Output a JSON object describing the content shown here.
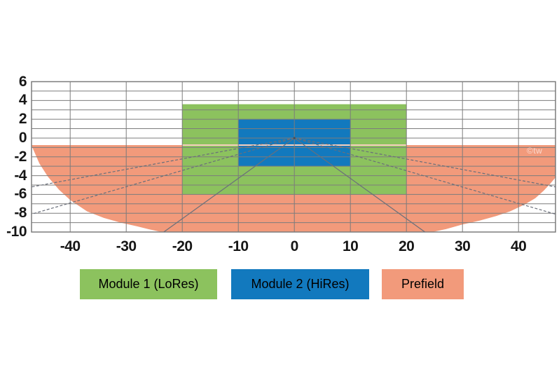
{
  "watermark": {
    "text": "©tw"
  },
  "colors": {
    "module1": "#8CC25E",
    "module2": "#1279BE",
    "prefield": "#F29A7B",
    "prefield_top_edge": "#F8CFBE",
    "grid": "#7C7C7C",
    "border": "#7C7C7C",
    "ray": "#6A6F7A",
    "axis_text": "#161616",
    "background": "#FFFFFF",
    "legend_text": "#000000"
  },
  "chart_data": {
    "type": "area",
    "title": "",
    "xlabel": "",
    "ylabel": "",
    "grid": "on",
    "legend_position": "bottom",
    "x_axis": {
      "min": -46.9,
      "max": 46.6,
      "grid_step": 10,
      "ticks": [
        {
          "value": -40,
          "label": "-40"
        },
        {
          "value": -30,
          "label": "-30"
        },
        {
          "value": -20,
          "label": "-20"
        },
        {
          "value": -10,
          "label": "-10"
        },
        {
          "value": 0,
          "label": "0"
        },
        {
          "value": 10,
          "label": "10"
        },
        {
          "value": 20,
          "label": "20"
        },
        {
          "value": 30,
          "label": "30"
        },
        {
          "value": 40,
          "label": "40"
        }
      ]
    },
    "y_axis": {
      "min": -10,
      "max": 6,
      "grid_step": 1,
      "ticks": [
        {
          "value": 6,
          "label": "6"
        },
        {
          "value": 4,
          "label": "4"
        },
        {
          "value": 2,
          "label": "2"
        },
        {
          "value": 0,
          "label": "0"
        },
        {
          "value": -2,
          "label": "-2"
        },
        {
          "value": -4,
          "label": "-4"
        },
        {
          "value": -6,
          "label": "-6"
        },
        {
          "value": -8,
          "label": "-8"
        },
        {
          "value": -10,
          "label": "-10"
        }
      ]
    },
    "modules": [
      {
        "name": "Module 1 (LoRes)",
        "color_key": "module1",
        "x": [
          -20,
          20
        ],
        "y": [
          -6,
          3.6
        ]
      },
      {
        "name": "Module 2 (HiRes)",
        "color_key": "module2",
        "x": [
          -10,
          10
        ],
        "y": [
          -3,
          2
        ]
      }
    ],
    "prefield": {
      "name": "Prefield",
      "color_key": "prefield",
      "top": -0.75,
      "top_edge_highlight_x": [
        -20,
        20
      ],
      "right_arc": [
        [
          46.6,
          -4.2
        ],
        [
          45.6,
          -4.9
        ],
        [
          44.5,
          -5.6
        ],
        [
          43,
          -6.4
        ],
        [
          41,
          -7.1
        ],
        [
          38.5,
          -7.8
        ],
        [
          36,
          -8.3
        ],
        [
          33,
          -8.8
        ],
        [
          30,
          -9.2
        ],
        [
          27,
          -9.7
        ],
        [
          24.6,
          -10
        ]
      ],
      "bottom_flat": [
        [
          24.6,
          -10
        ],
        [
          -23.7,
          -10
        ]
      ],
      "left_arc": [
        [
          -23.7,
          -10
        ],
        [
          -26,
          -9.7
        ],
        [
          -28,
          -9.4
        ],
        [
          -31,
          -9.0
        ],
        [
          -34,
          -8.5
        ],
        [
          -37,
          -7.8
        ],
        [
          -40,
          -6.6
        ],
        [
          -42,
          -5.5
        ],
        [
          -44,
          -4.1
        ],
        [
          -45.5,
          -2.7
        ],
        [
          -46.9,
          -0.8
        ]
      ]
    },
    "rays": {
      "origin": [
        0,
        0
      ],
      "lines": [
        {
          "style": "dashed",
          "end": [
            -46.9,
            -5.2
          ]
        },
        {
          "style": "dashed",
          "end": [
            46.6,
            -5.2
          ]
        },
        {
          "style": "dashed",
          "end": [
            -46.9,
            -8.1
          ]
        },
        {
          "style": "dashed",
          "end": [
            46.6,
            -8.1
          ]
        },
        {
          "style": "solid",
          "end": [
            -23.3,
            -10
          ]
        },
        {
          "style": "solid",
          "end": [
            23.3,
            -10
          ]
        }
      ]
    }
  },
  "legend": {
    "items": [
      {
        "label": "Module 1 (LoRes)",
        "color_key": "module1"
      },
      {
        "label": "Module 2 (HiRes)",
        "color_key": "module2"
      },
      {
        "label": "Prefield",
        "color_key": "prefield"
      }
    ]
  }
}
